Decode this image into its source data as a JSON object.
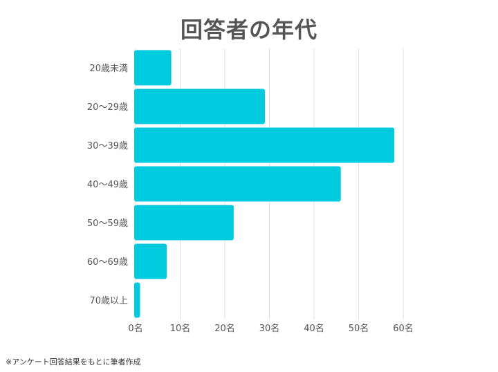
{
  "chart_data": {
    "type": "bar",
    "orientation": "horizontal",
    "title": "回答者の年代",
    "categories": [
      "20歳未満",
      "20〜29歳",
      "30〜39歳",
      "40〜49歳",
      "50〜59歳",
      "60〜69歳",
      "70歳以上"
    ],
    "values": [
      8,
      29,
      58,
      46,
      22,
      7,
      1
    ],
    "xlim": [
      0,
      60
    ],
    "x_ticks": [
      0,
      10,
      20,
      30,
      40,
      50,
      60
    ],
    "x_tick_labels": [
      "0名",
      "10名",
      "20名",
      "30名",
      "40名",
      "50名",
      "60名"
    ],
    "xlabel": "",
    "ylabel": "",
    "grid": "vertical",
    "bar_color": "#00CBDE",
    "grid_color": "#E0E0E0"
  },
  "footnote": "※アンケート回答結果をもとに筆者作成"
}
